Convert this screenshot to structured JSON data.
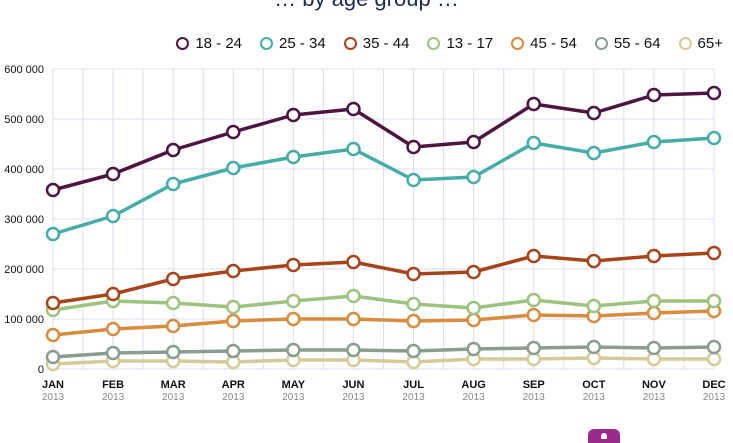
{
  "page": {
    "title_partial": "… by age group …",
    "scroll_top_color": "#9a2b8a"
  },
  "chart_data": {
    "type": "line",
    "title": "",
    "xlabel": "",
    "ylabel": "",
    "grid": true,
    "legend_position": "top-right",
    "ylim": [
      0,
      600000
    ],
    "yticks": [
      0,
      100000,
      200000,
      300000,
      400000,
      500000,
      600000
    ],
    "ytick_labels": [
      "0",
      "100 000",
      "200 000",
      "300 000",
      "400 000",
      "500 000",
      "600 000"
    ],
    "categories": [
      "JAN",
      "FEB",
      "MAR",
      "APR",
      "MAY",
      "JUN",
      "JUL",
      "AUG",
      "SEP",
      "OCT",
      "NOV",
      "DEC"
    ],
    "category_sublabels": [
      "2013",
      "2013",
      "2013",
      "2013",
      "2013",
      "2013",
      "2013",
      "2013",
      "2013",
      "2013",
      "2013",
      "2013"
    ],
    "series": [
      {
        "name": "18 - 24",
        "color": "#4e1442",
        "values": [
          358000,
          390000,
          438000,
          474000,
          508000,
          520000,
          444000,
          454000,
          530000,
          512000,
          548000,
          552000
        ]
      },
      {
        "name": "25 - 34",
        "color": "#45ada8",
        "values": [
          270000,
          306000,
          370000,
          402000,
          424000,
          440000,
          378000,
          384000,
          452000,
          432000,
          454000,
          462000
        ]
      },
      {
        "name": "35 - 44",
        "color": "#a8441a",
        "values": [
          132000,
          150000,
          180000,
          196000,
          208000,
          214000,
          190000,
          194000,
          226000,
          216000,
          226000,
          232000
        ]
      },
      {
        "name": "13 - 17",
        "color": "#9dc47e",
        "values": [
          118000,
          136000,
          132000,
          124000,
          136000,
          146000,
          130000,
          122000,
          138000,
          126000,
          136000,
          136000
        ]
      },
      {
        "name": "45 - 54",
        "color": "#d88c3c",
        "values": [
          68000,
          80000,
          86000,
          96000,
          100000,
          100000,
          96000,
          98000,
          108000,
          106000,
          112000,
          116000
        ]
      },
      {
        "name": "55 - 64",
        "color": "#879e90",
        "values": [
          24000,
          32000,
          34000,
          36000,
          38000,
          38000,
          36000,
          40000,
          42000,
          44000,
          42000,
          44000
        ]
      },
      {
        "name": "65+",
        "color": "#d4cb98",
        "values": [
          10000,
          16000,
          16000,
          14000,
          18000,
          18000,
          14000,
          20000,
          20000,
          22000,
          20000,
          20000
        ]
      }
    ]
  }
}
